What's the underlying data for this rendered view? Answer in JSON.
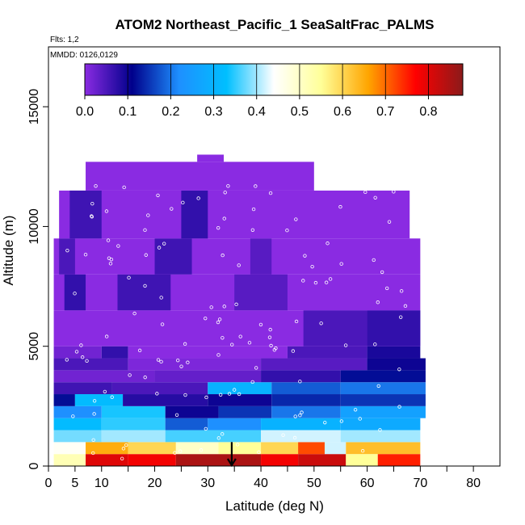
{
  "chart_data": {
    "type": "heatmap",
    "title": "ATOM2 Northeast_Pacific_1 SeaSaltFrac_PALMS",
    "flights_label": "Flts: 1,2",
    "dates_label": "MMDD: 0126,0129",
    "xlabel": "Latitude (deg N)",
    "ylabel": "Altitude (m)",
    "xlim": [
      0,
      85
    ],
    "ylim": [
      0,
      17500
    ],
    "x_ticks": [
      0,
      5,
      10,
      20,
      30,
      40,
      50,
      60,
      70,
      80
    ],
    "x_minor_ticks": [
      15,
      25,
      35,
      45,
      55,
      65,
      75
    ],
    "y_ticks": [
      0,
      5000,
      10000,
      15000
    ],
    "colorbar": {
      "min": 0.0,
      "max": 0.88,
      "ticks": [
        "0.0",
        "0.1",
        "0.2",
        "0.3",
        "0.4",
        "0.5",
        "0.6",
        "0.7",
        "0.8"
      ],
      "colors": [
        "#8a2be2",
        "#00008b",
        "#1e90ff",
        "#00bfff",
        "#ffffff",
        "#ffff99",
        "#ffa500",
        "#ff0000",
        "#8b1a1a"
      ]
    },
    "arrow_marker": {
      "latitude": 34.5
    },
    "altitude_bands": [
      {
        "alt": [
          0,
          500
        ],
        "values": [
          {
            "lat": [
              1,
              7
            ],
            "v": 0.52
          },
          {
            "lat": [
              7,
              15
            ],
            "v": 0.8
          },
          {
            "lat": [
              15,
              24
            ],
            "v": 0.78
          },
          {
            "lat": [
              24,
              40
            ],
            "v": 0.85
          },
          {
            "lat": [
              40,
              47
            ],
            "v": 0.78
          },
          {
            "lat": [
              47,
              56
            ],
            "v": 0.82
          },
          {
            "lat": [
              56,
              62
            ],
            "v": 0.55
          },
          {
            "lat": [
              62,
              70
            ],
            "v": 0.75
          }
        ]
      },
      {
        "alt": [
          500,
          1000
        ],
        "values": [
          {
            "lat": [
              1,
              7
            ],
            "v": 0.45
          },
          {
            "lat": [
              7,
              15
            ],
            "v": 0.65
          },
          {
            "lat": [
              15,
              24
            ],
            "v": 0.6
          },
          {
            "lat": [
              24,
              32
            ],
            "v": 0.5
          },
          {
            "lat": [
              32,
              40
            ],
            "v": 0.55
          },
          {
            "lat": [
              40,
              47
            ],
            "v": 0.6
          },
          {
            "lat": [
              47,
              52
            ],
            "v": 0.72
          },
          {
            "lat": [
              52,
              56
            ],
            "v": 0.42
          },
          {
            "lat": [
              56,
              70
            ],
            "v": 0.63
          }
        ]
      },
      {
        "alt": [
          1000,
          1500
        ],
        "values": [
          {
            "lat": [
              1,
              10
            ],
            "v": 0.38
          },
          {
            "lat": [
              10,
              22
            ],
            "v": 0.4
          },
          {
            "lat": [
              22,
              40
            ],
            "v": 0.36
          },
          {
            "lat": [
              40,
              55
            ],
            "v": 0.42
          },
          {
            "lat": [
              55,
              70
            ],
            "v": 0.4
          }
        ]
      },
      {
        "alt": [
          1500,
          2000
        ],
        "values": [
          {
            "lat": [
              1,
              10
            ],
            "v": 0.32
          },
          {
            "lat": [
              10,
              22
            ],
            "v": 0.35
          },
          {
            "lat": [
              22,
              30
            ],
            "v": 0.18
          },
          {
            "lat": [
              30,
              40
            ],
            "v": 0.22
          },
          {
            "lat": [
              40,
              55
            ],
            "v": 0.3
          },
          {
            "lat": [
              55,
              70
            ],
            "v": 0.28
          }
        ]
      },
      {
        "alt": [
          2000,
          2500
        ],
        "values": [
          {
            "lat": [
              1,
              10
            ],
            "v": 0.22
          },
          {
            "lat": [
              10,
              22
            ],
            "v": 0.34
          },
          {
            "lat": [
              22,
              32
            ],
            "v": 0.1
          },
          {
            "lat": [
              32,
              42
            ],
            "v": 0.15
          },
          {
            "lat": [
              42,
              55
            ],
            "v": 0.2
          },
          {
            "lat": [
              55,
              71
            ],
            "v": 0.26
          }
        ]
      },
      {
        "alt": [
          2500,
          3000
        ],
        "values": [
          {
            "lat": [
              1,
              5
            ],
            "v": 0.12
          },
          {
            "lat": [
              5,
              14
            ],
            "v": 0.32
          },
          {
            "lat": [
              14,
              30
            ],
            "v": 0.08
          },
          {
            "lat": [
              30,
              42
            ],
            "v": 0.1
          },
          {
            "lat": [
              42,
              55
            ],
            "v": 0.14
          },
          {
            "lat": [
              55,
              71
            ],
            "v": 0.15
          }
        ]
      },
      {
        "alt": [
          3000,
          3500
        ],
        "values": [
          {
            "lat": [
              1,
              12
            ],
            "v": 0.06
          },
          {
            "lat": [
              12,
              30
            ],
            "v": 0.05
          },
          {
            "lat": [
              30,
              42
            ],
            "v": 0.3
          },
          {
            "lat": [
              42,
              55
            ],
            "v": 0.18
          },
          {
            "lat": [
              55,
              71
            ],
            "v": 0.2
          }
        ]
      },
      {
        "alt": [
          3500,
          4000
        ],
        "values": [
          {
            "lat": [
              1,
              20
            ],
            "v": 0.02
          },
          {
            "lat": [
              20,
              40
            ],
            "v": 0.03
          },
          {
            "lat": [
              40,
              55
            ],
            "v": 0.07
          },
          {
            "lat": [
              55,
              71
            ],
            "v": 0.12
          }
        ]
      },
      {
        "alt": [
          4000,
          4500
        ],
        "values": [
          {
            "lat": [
              1,
              15
            ],
            "v": 0.05
          },
          {
            "lat": [
              15,
              40
            ],
            "v": 0.01
          },
          {
            "lat": [
              40,
              60
            ],
            "v": 0.04
          },
          {
            "lat": [
              60,
              71
            ],
            "v": 0.1
          }
        ]
      },
      {
        "alt": [
          4500,
          5000
        ],
        "values": [
          {
            "lat": [
              1,
              10
            ],
            "v": 0.02
          },
          {
            "lat": [
              10,
              15
            ],
            "v": 0.07
          },
          {
            "lat": [
              15,
              45
            ],
            "v": 0.0
          },
          {
            "lat": [
              45,
              60
            ],
            "v": 0.05
          },
          {
            "lat": [
              60,
              70
            ],
            "v": 0.09
          }
        ]
      },
      {
        "alt": [
          5000,
          6500
        ],
        "values": [
          {
            "lat": [
              1,
              70
            ],
            "v": 0.0
          },
          {
            "lat": [
              48,
              60
            ],
            "v": 0.05
          },
          {
            "lat": [
              60,
              70
            ],
            "v": 0.07
          }
        ]
      },
      {
        "alt": [
          6500,
          8000
        ],
        "values": [
          {
            "lat": [
              1,
              70
            ],
            "v": 0.0
          },
          {
            "lat": [
              3,
              7
            ],
            "v": 0.07
          },
          {
            "lat": [
              13,
              23
            ],
            "v": 0.06
          },
          {
            "lat": [
              35,
              45
            ],
            "v": 0.04
          }
        ]
      },
      {
        "alt": [
          8000,
          9500
        ],
        "values": [
          {
            "lat": [
              1,
              70
            ],
            "v": 0.0
          },
          {
            "lat": [
              2,
              5
            ],
            "v": 0.05
          },
          {
            "lat": [
              20,
              27
            ],
            "v": 0.06
          },
          {
            "lat": [
              38,
              42
            ],
            "v": 0.04
          }
        ]
      },
      {
        "alt": [
          9500,
          11500
        ],
        "values": [
          {
            "lat": [
              2,
              68
            ],
            "v": 0.0
          },
          {
            "lat": [
              4,
              10
            ],
            "v": 0.06
          },
          {
            "lat": [
              25,
              30
            ],
            "v": 0.07
          }
        ]
      },
      {
        "alt": [
          11500,
          12700
        ],
        "values": [
          {
            "lat": [
              7,
              50
            ],
            "v": 0.0
          }
        ]
      },
      {
        "alt": [
          12700,
          13000
        ],
        "values": [
          {
            "lat": [
              28,
              33
            ],
            "v": 0.0
          }
        ]
      }
    ]
  }
}
